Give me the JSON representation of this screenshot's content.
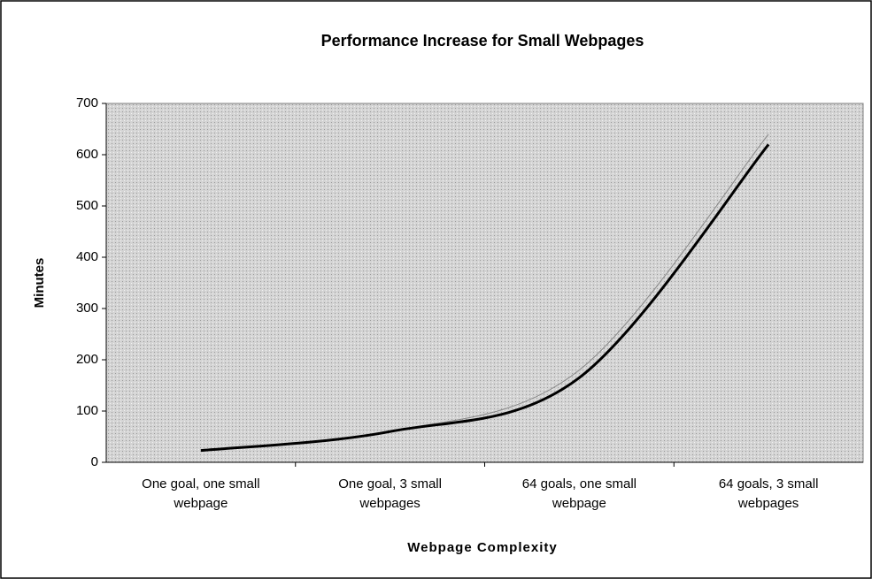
{
  "chart_data": {
    "type": "line",
    "title": "Performance Increase for Small Webpages",
    "x_label": "Webpage Complexity",
    "y_label": "Minutes",
    "categories": [
      "One goal, one small webpage",
      "One goal, 3 small webpages",
      "64 goals, one small webpage",
      "64 goals, 3 small webpages"
    ],
    "series": [
      {
        "color": "#888888",
        "width": 1,
        "values": [
          23,
          60,
          180,
          640
        ]
      },
      {
        "color": "#000000",
        "width": 3,
        "values": [
          23,
          60,
          165,
          620
        ]
      }
    ],
    "ylim": [
      0,
      700
    ],
    "yticks": [
      0,
      100,
      200,
      300,
      400,
      500,
      600,
      700
    ],
    "grid": false
  }
}
